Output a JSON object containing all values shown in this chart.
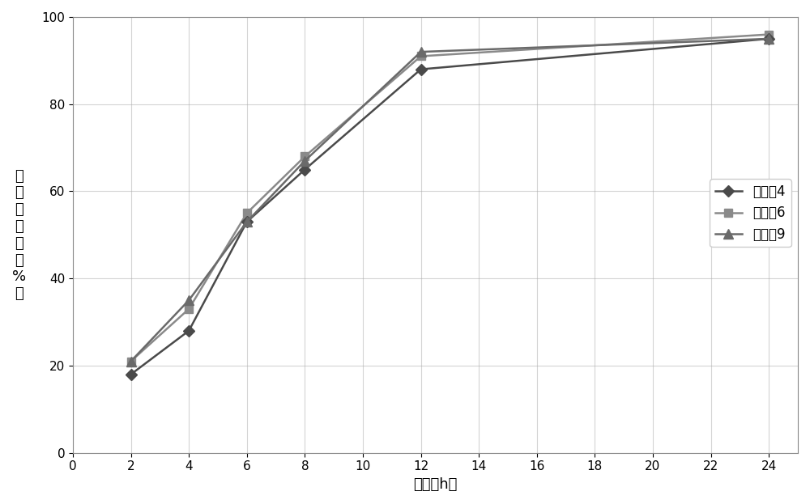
{
  "series": [
    {
      "label": "实施例4",
      "x": [
        2,
        4,
        6,
        8,
        12,
        24
      ],
      "y": [
        18,
        28,
        53,
        65,
        88,
        95
      ],
      "color": "#4a4a4a",
      "marker": "D",
      "markersize": 7,
      "linewidth": 1.8,
      "zorder": 3
    },
    {
      "label": "实施例6",
      "x": [
        2,
        4,
        6,
        8,
        12,
        24
      ],
      "y": [
        21,
        33,
        55,
        68,
        91,
        96
      ],
      "color": "#8a8a8a",
      "marker": "s",
      "markersize": 7,
      "linewidth": 1.8,
      "zorder": 2
    },
    {
      "label": "实施例9",
      "x": [
        2,
        4,
        6,
        8,
        12,
        24
      ],
      "y": [
        21,
        35,
        53,
        67,
        92,
        95
      ],
      "color": "#6a6a6a",
      "marker": "^",
      "markersize": 8,
      "linewidth": 1.8,
      "zorder": 4
    }
  ],
  "xlabel": "时间（h）",
  "ylabel": "累\n积\n溶\n出\n度\n（\n%\n）",
  "xlim": [
    0,
    25
  ],
  "ylim": [
    0,
    100
  ],
  "xticks": [
    0,
    2,
    4,
    6,
    8,
    10,
    12,
    14,
    16,
    18,
    20,
    22,
    24
  ],
  "yticks": [
    0,
    20,
    40,
    60,
    80,
    100
  ],
  "grid_color": "#aaaaaa",
  "grid_alpha": 0.5,
  "background_color": "#ffffff",
  "legend_fontsize": 12,
  "axis_fontsize": 13,
  "tick_fontsize": 11
}
